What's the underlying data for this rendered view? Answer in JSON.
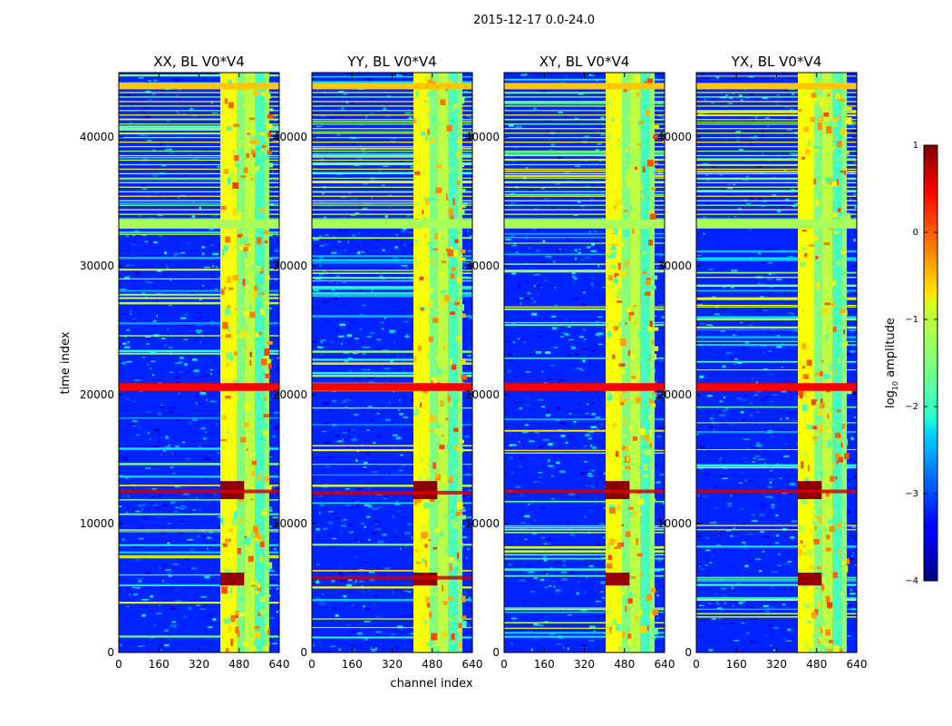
{
  "figure": {
    "suptitle": "2015-12-17 0.0-24.0"
  },
  "chart_data": {
    "type": "heatmap",
    "xlabel": "channel index",
    "ylabel": "time index",
    "xlim": [
      0,
      640
    ],
    "ylim": [
      0,
      45000
    ],
    "xticks": [
      0,
      160,
      320,
      480,
      640
    ],
    "yticks": [
      0,
      10000,
      20000,
      30000,
      40000
    ],
    "panels": [
      {
        "title": "XX, BL V0*V4",
        "pol": "XX"
      },
      {
        "title": "YY, BL V0*V4",
        "pol": "YY"
      },
      {
        "title": "XY, BL V0*V4",
        "pol": "XY"
      },
      {
        "title": "YX, BL V0*V4",
        "pol": "YX"
      }
    ],
    "colorbar": {
      "label": "log10 amplitude",
      "label_text": "log",
      "label_sub": "10",
      "label_rest": " amplitude",
      "range": [
        -4,
        1
      ],
      "ticks": [
        "1",
        "0",
        "−1",
        "−2",
        "−3",
        "−4"
      ],
      "colormap": "jet"
    },
    "features": {
      "background_log_amp": -3.2,
      "rfi_channel_bands": [
        {
          "from": 405,
          "to": 470,
          "level": -0.9
        },
        {
          "from": 470,
          "to": 500,
          "level": -1.5
        },
        {
          "from": 500,
          "to": 545,
          "level": -1.2
        },
        {
          "from": 545,
          "to": 580,
          "level": -1.8
        },
        {
          "from": 580,
          "to": 600,
          "level": -1.4
        }
      ],
      "strong_time_bands": [
        {
          "from": 20300,
          "to": 20900,
          "level": 0.4
        },
        {
          "from": 32900,
          "to": 33600,
          "level": -1.3
        },
        {
          "from": 43700,
          "to": 44200,
          "level": -0.6
        }
      ],
      "saturated_blocks": [
        {
          "t_from": 11900,
          "t_to": 13300,
          "level": 0.95
        },
        {
          "t_from": 5200,
          "t_to": 6200,
          "level": 0.9
        }
      ]
    }
  }
}
